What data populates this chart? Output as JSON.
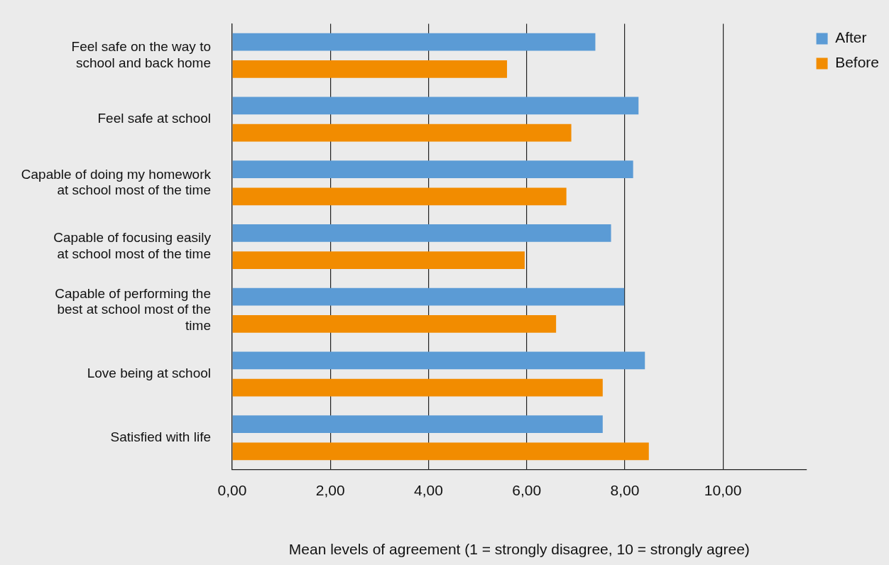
{
  "chart_data": {
    "type": "bar",
    "orientation": "horizontal",
    "xlabel": "Mean levels of agreement (1 = strongly disagree, 10 = strongly agree)",
    "categories": [
      "Feel safe on the way to school and back home",
      "Feel safe at school",
      "Capable of doing my homework at school most of the time",
      "Capable of focusing easily at school most of the time",
      "Capable of performing the best at school most of the time",
      "Love being at school",
      "Satisfied with life"
    ],
    "series": [
      {
        "name": "After",
        "color": "#5b9bd5",
        "values": [
          7.4,
          8.28,
          8.17,
          7.72,
          7.99,
          8.41,
          7.55
        ]
      },
      {
        "name": "Before",
        "color": "#f28c00",
        "values": [
          5.6,
          6.91,
          6.81,
          5.96,
          6.6,
          7.55,
          8.49
        ]
      }
    ],
    "xlim": [
      0,
      11.7
    ],
    "xticks": [
      {
        "value": 0,
        "label": "0,00"
      },
      {
        "value": 2,
        "label": "2,00"
      },
      {
        "value": 4,
        "label": "4,00"
      },
      {
        "value": 6,
        "label": "6,00"
      },
      {
        "value": 8,
        "label": "8,00"
      },
      {
        "value": 10,
        "label": "10,00"
      }
    ],
    "grid": "x",
    "legend": "top right"
  }
}
